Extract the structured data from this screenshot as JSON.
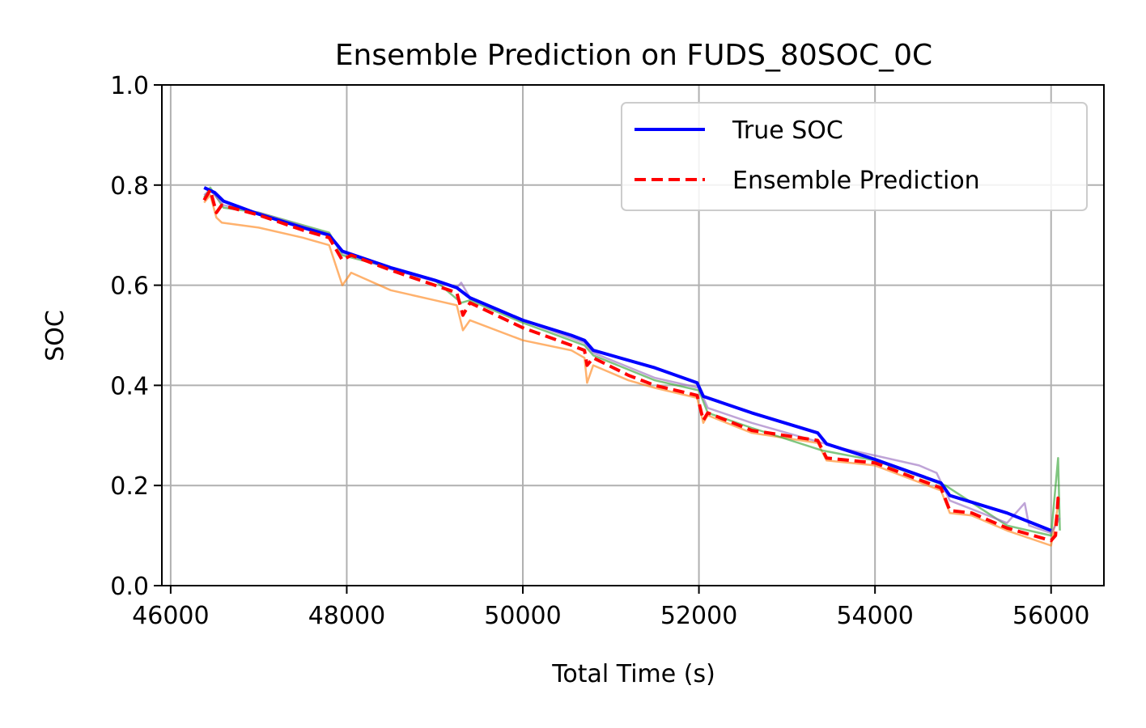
{
  "chart_data": {
    "type": "line",
    "title": "Ensemble Prediction on FUDS_80SOC_0C",
    "xlabel": "Total Time (s)",
    "ylabel": "SOC",
    "xlim": [
      45900,
      56600
    ],
    "ylim": [
      0.0,
      1.0
    ],
    "xticks": [
      46000,
      48000,
      50000,
      52000,
      54000,
      56000
    ],
    "yticks": [
      0.0,
      0.2,
      0.4,
      0.6,
      0.8,
      1.0
    ],
    "xtick_labels": [
      "46000",
      "48000",
      "50000",
      "52000",
      "54000",
      "56000"
    ],
    "ytick_labels": [
      "0.0",
      "0.2",
      "0.4",
      "0.6",
      "0.8",
      "1.0"
    ],
    "grid": true,
    "legend_position": "top-right",
    "colors": {
      "true_soc": "#0000ff",
      "ensemble": "#ff0000",
      "member_orange": "#ff7f0e",
      "member_green": "#2ca02c",
      "member_purple": "#9467bd",
      "grid": "#b0b0b0"
    },
    "series": [
      {
        "name": "True SOC",
        "style": "solid",
        "color": "#0000ff",
        "x": [
          46380,
          46500,
          46600,
          47000,
          47500,
          47800,
          47950,
          48500,
          49000,
          49250,
          49400,
          50000,
          50550,
          50700,
          50800,
          51500,
          51980,
          52050,
          52600,
          53350,
          53450,
          54000,
          54750,
          54850,
          55500,
          56000
        ],
        "y": [
          0.795,
          0.785,
          0.768,
          0.742,
          0.715,
          0.7,
          0.668,
          0.635,
          0.61,
          0.595,
          0.575,
          0.53,
          0.5,
          0.49,
          0.47,
          0.435,
          0.405,
          0.378,
          0.345,
          0.305,
          0.283,
          0.252,
          0.205,
          0.18,
          0.145,
          0.11
        ]
      },
      {
        "name": "Ensemble Prediction",
        "style": "dashed",
        "color": "#ff0000",
        "x": [
          46380,
          46450,
          46520,
          46580,
          47000,
          47500,
          47800,
          47950,
          48050,
          48500,
          49000,
          49250,
          49320,
          49400,
          50000,
          50550,
          50700,
          50730,
          50800,
          51200,
          51500,
          51980,
          52050,
          52100,
          52600,
          53350,
          53450,
          54000,
          54750,
          54850,
          55100,
          55500,
          56000,
          56050,
          56080,
          56100
        ],
        "y": [
          0.77,
          0.79,
          0.745,
          0.76,
          0.74,
          0.71,
          0.695,
          0.65,
          0.66,
          0.63,
          0.6,
          0.585,
          0.54,
          0.565,
          0.515,
          0.48,
          0.47,
          0.44,
          0.455,
          0.42,
          0.4,
          0.38,
          0.33,
          0.345,
          0.31,
          0.29,
          0.255,
          0.245,
          0.195,
          0.15,
          0.145,
          0.115,
          0.09,
          0.1,
          0.175,
          0.165
        ]
      },
      {
        "name": "",
        "style": "solid",
        "color": "#ff7f0e",
        "x": [
          46380,
          46450,
          46520,
          46580,
          47000,
          47500,
          47800,
          47950,
          48050,
          48500,
          49000,
          49250,
          49320,
          49400,
          50000,
          50550,
          50700,
          50730,
          50800,
          51200,
          51500,
          51980,
          52050,
          52100,
          52600,
          53350,
          53450,
          54000,
          54750,
          54850,
          55100,
          55500,
          56000,
          56080
        ],
        "y": [
          0.765,
          0.78,
          0.735,
          0.725,
          0.715,
          0.695,
          0.68,
          0.6,
          0.625,
          0.59,
          0.57,
          0.56,
          0.51,
          0.53,
          0.49,
          0.47,
          0.455,
          0.405,
          0.44,
          0.41,
          0.395,
          0.375,
          0.325,
          0.34,
          0.305,
          0.285,
          0.25,
          0.24,
          0.19,
          0.145,
          0.14,
          0.11,
          0.08,
          0.16
        ]
      },
      {
        "name": "",
        "style": "solid",
        "color": "#2ca02c",
        "x": [
          46380,
          46450,
          46600,
          47000,
          47500,
          47800,
          47950,
          48500,
          49000,
          49300,
          49400,
          50000,
          50700,
          50800,
          51500,
          52000,
          52100,
          52600,
          53400,
          54000,
          54800,
          55500,
          56000,
          56080,
          56100
        ],
        "y": [
          0.775,
          0.795,
          0.755,
          0.745,
          0.72,
          0.705,
          0.66,
          0.635,
          0.61,
          0.565,
          0.57,
          0.525,
          0.48,
          0.46,
          0.41,
          0.39,
          0.345,
          0.315,
          0.27,
          0.25,
          0.2,
          0.12,
          0.1,
          0.255,
          0.11
        ]
      },
      {
        "name": "",
        "style": "solid",
        "color": "#9467bd",
        "x": [
          46380,
          46450,
          46600,
          47000,
          47500,
          47800,
          47950,
          48500,
          49000,
          49250,
          49300,
          49400,
          50000,
          50700,
          50800,
          51500,
          52000,
          52100,
          52600,
          53400,
          53600,
          54000,
          54500,
          54700,
          54850,
          55500,
          55700,
          55750,
          56000,
          56100
        ],
        "y": [
          0.78,
          0.79,
          0.76,
          0.745,
          0.718,
          0.702,
          0.665,
          0.632,
          0.608,
          0.595,
          0.605,
          0.575,
          0.53,
          0.485,
          0.465,
          0.415,
          0.395,
          0.355,
          0.325,
          0.285,
          0.275,
          0.26,
          0.24,
          0.225,
          0.17,
          0.125,
          0.165,
          0.12,
          0.105,
          0.135
        ]
      }
    ]
  }
}
